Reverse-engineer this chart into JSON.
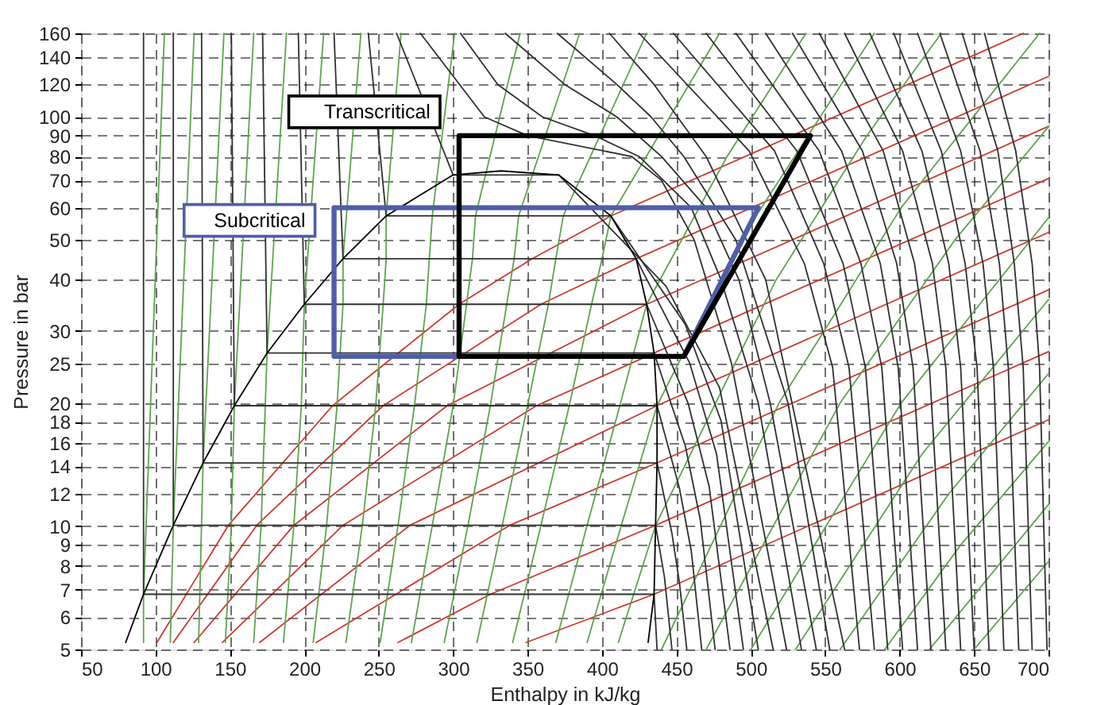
{
  "chart_data": {
    "type": "line",
    "xlabel": "Enthalpy in kJ/kg",
    "ylabel": "Pressure in bar",
    "xlim": [
      50,
      700
    ],
    "ylim": [
      5,
      160
    ],
    "log": "y",
    "grid": true,
    "xticks": [
      50,
      100,
      150,
      200,
      250,
      300,
      350,
      400,
      450,
      500,
      550,
      600,
      650,
      700
    ],
    "yticks": [
      5,
      6,
      7,
      8,
      9,
      10,
      12,
      14,
      16,
      18,
      20,
      25,
      30,
      40,
      50,
      60,
      70,
      80,
      90,
      100,
      120,
      140,
      160
    ],
    "series": [
      {
        "color": "#cc3b2f",
        "x": [
          349,
          435,
          700
        ],
        "values": [
          5.2,
          6.82,
          18.2
        ]
      },
      {
        "color": "#cc3b2f",
        "x": [
          263,
          325,
          436,
          700
        ],
        "values": [
          5.2,
          6.82,
          10.05,
          26.7
        ]
      },
      {
        "color": "#cc3b2f",
        "x": [
          208,
          338,
          437,
          700
        ],
        "values": [
          5.2,
          10.05,
          14.28,
          37.8
        ]
      },
      {
        "color": "#cc3b2f",
        "x": [
          170,
          271,
          437,
          700
        ],
        "values": [
          5.2,
          10.05,
          19.7,
          52.2
        ]
      },
      {
        "color": "#cc3b2f",
        "x": [
          145,
          226,
          356,
          435,
          700
        ],
        "values": [
          5.2,
          10.05,
          19.7,
          26.49,
          70.7
        ]
      },
      {
        "color": "#cc3b2f",
        "x": [
          126,
          193,
          296,
          430,
          700
        ],
        "values": [
          5.2,
          10.05,
          19.7,
          34.85,
          94.8
        ]
      },
      {
        "color": "#cc3b2f",
        "x": [
          112,
          168,
          253,
          359,
          423,
          700
        ],
        "values": [
          5.2,
          10.05,
          19.7,
          34.85,
          45.02,
          125.6
        ]
      },
      {
        "color": "#cc3b2f",
        "x": [
          101,
          149,
          219,
          304,
          353,
          406,
          683
        ],
        "values": [
          5.2,
          10.05,
          19.7,
          34.85,
          45.02,
          57.29,
          160
        ]
      },
      {
        "color": "#5ea34f",
        "x": [
          92,
          92,
          106
        ],
        "values": [
          5.2,
          6.82,
          160
        ]
      },
      {
        "color": "#5ea34f",
        "x": [
          110,
          112,
          126
        ],
        "values": [
          5.2,
          10.05,
          160
        ]
      },
      {
        "color": "#5ea34f",
        "x": [
          129,
          132,
          146
        ],
        "values": [
          5.2,
          14.28,
          160
        ]
      },
      {
        "color": "#5ea34f",
        "x": [
          147,
          151,
          153,
          166
        ],
        "values": [
          5.2,
          10.05,
          19.7,
          160
        ]
      },
      {
        "color": "#5ea34f",
        "x": [
          166,
          171,
          175,
          188
        ],
        "values": [
          5.2,
          10.05,
          26.49,
          160
        ]
      },
      {
        "color": "#5ea34f",
        "x": [
          186,
          193,
          198,
          200,
          213
        ],
        "values": [
          5.2,
          10.05,
          19.7,
          34.85,
          160
        ]
      },
      {
        "color": "#5ea34f",
        "x": [
          206,
          215,
          222,
          226,
          226,
          238
        ],
        "values": [
          5.2,
          10.05,
          19.7,
          34.85,
          45.02,
          160
        ]
      },
      {
        "color": "#5ea34f",
        "x": [
          228,
          239,
          248,
          253,
          255,
          255,
          265
        ],
        "values": [
          5.2,
          10.05,
          19.7,
          34.85,
          45.02,
          57.29,
          160
        ]
      },
      {
        "color": "#5ea34f",
        "x": [
          251,
          263,
          274,
          282,
          284,
          286,
          301
        ],
        "values": [
          5.2,
          10.05,
          19.7,
          34.85,
          45.02,
          57.29,
          160
        ]
      },
      {
        "color": "#5ea34f",
        "x": [
          272,
          286,
          300,
          309,
          313,
          315,
          345
        ],
        "values": [
          5.2,
          10.05,
          19.7,
          34.85,
          45.02,
          57.29,
          160
        ]
      },
      {
        "color": "#5ea34f",
        "x": [
          294,
          310,
          325,
          336,
          341,
          344,
          385
        ],
        "values": [
          5.2,
          10.05,
          19.7,
          34.85,
          45.02,
          57.29,
          160
        ]
      },
      {
        "color": "#5ea34f",
        "x": [
          316,
          333,
          350,
          364,
          369,
          374,
          430
        ],
        "values": [
          5.2,
          10.05,
          19.7,
          34.85,
          45.02,
          57.29,
          160
        ]
      },
      {
        "color": "#5ea34f",
        "x": [
          340,
          359,
          378,
          393,
          400,
          406,
          479
        ],
        "values": [
          5.2,
          10.05,
          19.7,
          34.85,
          45.02,
          57.29,
          160
        ]
      },
      {
        "color": "#5ea34f",
        "x": [
          369,
          390,
          412,
          430,
          484,
          537
        ],
        "values": [
          5.2,
          10.05,
          19.7,
          34.85,
          80,
          160
        ]
      },
      {
        "color": "#5ea34f",
        "x": [
          390,
          413,
          437,
          493,
          583
        ],
        "values": [
          5.2,
          10.05,
          19.7,
          50,
          160
        ]
      },
      {
        "color": "#5ea34f",
        "x": [
          411,
          436,
          517,
          578,
          628
        ],
        "values": [
          5.2,
          10.05,
          40,
          90,
          160
        ]
      },
      {
        "color": "#5ea34f",
        "x": [
          440,
          519,
          601,
          694
        ],
        "values": [
          5,
          20,
          60,
          160
        ]
      },
      {
        "color": "#5ea34f",
        "x": [
          470,
          560,
          637,
          700
        ],
        "values": [
          5,
          20,
          50,
          94.6
        ]
      },
      {
        "color": "#5ea34f",
        "x": [
          500,
          601,
          700
        ],
        "values": [
          5,
          20,
          56.7
        ]
      },
      {
        "color": "#5ea34f",
        "x": [
          530,
          615,
          700
        ],
        "values": [
          5,
          15,
          35.8
        ]
      },
      {
        "color": "#5ea34f",
        "x": [
          560,
          633,
          700
        ],
        "values": [
          5,
          12,
          23.6
        ]
      },
      {
        "color": "#5ea34f",
        "x": [
          590,
          641,
          700
        ],
        "values": [
          5,
          9,
          16.1
        ]
      },
      {
        "color": "#5ea34f",
        "x": [
          620,
          700
        ],
        "values": [
          5,
          11.3
        ]
      },
      {
        "color": "#5ea34f",
        "x": [
          650,
          700
        ],
        "values": [
          5,
          8.2
        ]
      },
      {
        "color": "#303030",
        "x": [
          92,
          92,
          435,
          437
        ],
        "values": [
          160,
          6.82,
          6.82,
          5
        ]
      },
      {
        "color": "#303030",
        "x": [
          112,
          112,
          436,
          442,
          447
        ],
        "values": [
          160,
          10.05,
          10.05,
          7.5,
          5
        ]
      },
      {
        "color": "#303030",
        "x": [
          131,
          132,
          437,
          447,
          452,
          457
        ],
        "values": [
          160,
          14.28,
          14.28,
          9.6,
          7.3,
          5
        ]
      },
      {
        "color": "#303030",
        "x": [
          151,
          153,
          437,
          452,
          460,
          467
        ],
        "values": [
          160,
          19.7,
          19.7,
          12.4,
          8.7,
          5
        ]
      },
      {
        "color": "#303030",
        "x": [
          172,
          175,
          435,
          456,
          466,
          476
        ],
        "values": [
          160,
          26.49,
          26.49,
          15.7,
          10.4,
          5
        ]
      },
      {
        "color": "#303030",
        "x": [
          196,
          200,
          430,
          458,
          472,
          486
        ],
        "values": [
          160,
          34.85,
          34.85,
          19.9,
          12.5,
          5
        ]
      },
      {
        "color": "#303030",
        "x": [
          220,
          226,
          423,
          459,
          477,
          495
        ],
        "values": [
          160,
          45.02,
          45.02,
          25,
          15,
          5
        ]
      },
      {
        "color": "#303030",
        "x": [
          243,
          255,
          406,
          456,
          480,
          505
        ],
        "values": [
          160,
          57.29,
          57.29,
          31.1,
          18.1,
          5
        ]
      },
      {
        "color": "#303030",
        "x": [
          262,
          300,
          371,
          443,
          479,
          515
        ],
        "values": [
          160,
          72.14,
          72.14,
          38.6,
          21.8,
          5
        ]
      },
      {
        "color": "#303030",
        "x": [
          278,
          321,
          350,
          420,
          440,
          462,
          487,
          524
        ],
        "values": [
          160,
          100,
          90,
          80,
          70,
          50,
          25,
          5
        ]
      },
      {
        "color": "#303030",
        "x": [
          305,
          330,
          360,
          395,
          425,
          460,
          480,
          505,
          534
        ],
        "values": [
          160,
          120,
          100,
          90,
          80,
          60,
          40,
          20,
          5
        ]
      },
      {
        "color": "#303030",
        "x": [
          335,
          375,
          410,
          440,
          470,
          492,
          513,
          544
        ],
        "values": [
          160,
          120,
          100,
          80,
          60,
          40,
          20,
          5
        ]
      },
      {
        "color": "#303030",
        "x": [
          370,
          410,
          433,
          455,
          490,
          525,
          553
        ],
        "values": [
          160,
          120,
          100,
          80,
          50,
          20,
          5
        ]
      },
      {
        "color": "#303030",
        "x": [
          405,
          435,
          470,
          510,
          563
        ],
        "values": [
          160,
          120,
          80,
          40,
          5
        ]
      },
      {
        "color": "#303030",
        "x": [
          425,
          499,
          536,
          555,
          573
        ],
        "values": [
          160,
          82.5,
          43.8,
          24.4,
          5
        ]
      },
      {
        "color": "#303030",
        "x": [
          448,
          516,
          549,
          566,
          583
        ],
        "values": [
          160,
          82.5,
          43.8,
          24.4,
          5
        ]
      },
      {
        "color": "#303030",
        "x": [
          470,
          531,
          562,
          577,
          592
        ],
        "values": [
          160,
          82.5,
          43.8,
          24.4,
          5
        ]
      },
      {
        "color": "#303030",
        "x": [
          490,
          546,
          574,
          588,
          602
        ],
        "values": [
          160,
          82.5,
          43.8,
          24.4,
          5
        ]
      },
      {
        "color": "#303030",
        "x": [
          510,
          561,
          587,
          599,
          612
        ],
        "values": [
          160,
          82.5,
          43.8,
          24.4,
          5
        ]
      },
      {
        "color": "#303030",
        "x": [
          528,
          575,
          598,
          609,
          621
        ],
        "values": [
          160,
          82.5,
          43.8,
          24.4,
          5
        ]
      },
      {
        "color": "#303030",
        "x": [
          546,
          589,
          610,
          620,
          631
        ],
        "values": [
          160,
          82.5,
          43.8,
          24.4,
          5
        ]
      },
      {
        "color": "#303030",
        "x": [
          563,
          602,
          622,
          631,
          641
        ],
        "values": [
          160,
          82.5,
          43.8,
          24.4,
          5
        ]
      },
      {
        "color": "#303030",
        "x": [
          580,
          615,
          633,
          641,
          650
        ],
        "values": [
          160,
          82.5,
          43.8,
          24.4,
          5
        ]
      },
      {
        "color": "#303030",
        "x": [
          596,
          628,
          644,
          652,
          660
        ],
        "values": [
          160,
          82.5,
          43.8,
          24.4,
          5
        ]
      },
      {
        "color": "#303030",
        "x": [
          612,
          641,
          656,
          663,
          670
        ],
        "values": [
          160,
          82.5,
          43.8,
          24.4,
          5
        ]
      },
      {
        "color": "#303030",
        "x": [
          627,
          654,
          667,
          673,
          680
        ],
        "values": [
          160,
          82.5,
          43.8,
          24.4,
          5
        ]
      },
      {
        "color": "#303030",
        "x": [
          642,
          666,
          677,
          683,
          689
        ],
        "values": [
          160,
          82.5,
          43.8,
          24.4,
          5
        ]
      },
      {
        "color": "#303030",
        "x": [
          657,
          678,
          689,
          694,
          699
        ],
        "values": [
          160,
          82.5,
          43.8,
          24.4,
          5
        ]
      },
      {
        "color": "#000000",
        "x": [
          80,
          92,
          112,
          132,
          153,
          175,
          200,
          226,
          255,
          300,
          332,
          371,
          406,
          423,
          430,
          435,
          437,
          437,
          436,
          435,
          431
        ],
        "values": [
          5.2,
          6.82,
          10.05,
          14.28,
          19.7,
          26.49,
          34.85,
          45.02,
          57.29,
          72.14,
          73.8,
          72.14,
          57.29,
          45.02,
          34.85,
          26.49,
          19.7,
          14.28,
          10.05,
          6.82,
          5.2
        ]
      },
      {
        "name": "Subcritical",
        "color": "#4f5ea8",
        "x": [
          304,
          220,
          220,
          505,
          455
        ],
        "values": [
          26,
          26,
          60,
          60,
          26
        ]
      },
      {
        "name": "Transcritical",
        "color": "#000000",
        "x": [
          304,
          540,
          455,
          304,
          304,
          540
        ],
        "values": [
          90,
          90,
          26,
          26,
          90,
          90
        ]
      }
    ]
  }
}
